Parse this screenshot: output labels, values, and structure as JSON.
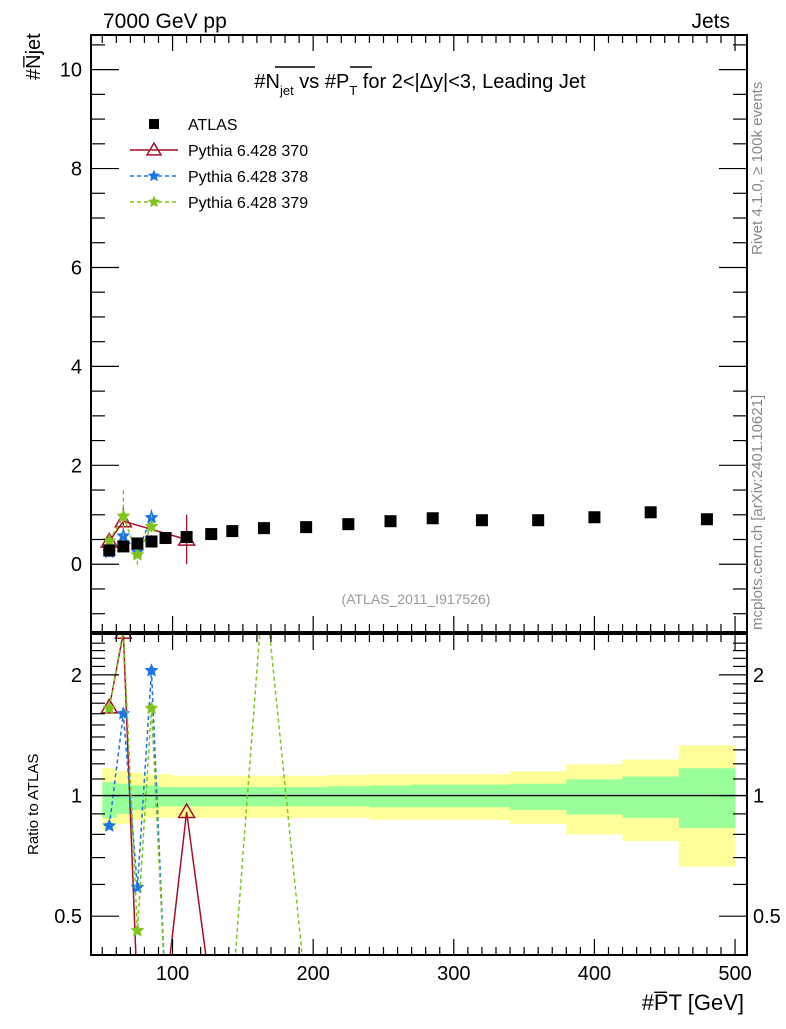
{
  "header": {
    "left": "7000 GeV pp",
    "right": "Jets"
  },
  "side_text": {
    "top": "Rivet 4.1.0, ≥ 100k events",
    "bottom": "mcplots.cern.ch [arXiv:2401.10621]"
  },
  "chart_data": {
    "type": "scatter",
    "title": "#N̅jet vs #P̅T for 2<|Δy|<3, Leading Jet",
    "title_parts": {
      "n": "#N",
      "jet": "jet",
      "vs": " vs #P",
      "t": "T",
      "rest": " for 2<|Δy|<3, Leading Jet"
    },
    "analysis_label": "(ATLAS_2011_I917526)",
    "xlabel": "#P̅T [GeV]",
    "xlabel_parts": {
      "p": "#P",
      "t": "T",
      "unit": " [GeV]"
    },
    "ylabel": "#N̅jet",
    "ylabel_parts": {
      "n": "#N",
      "jet": "jet"
    },
    "ratio_ylabel": "Ratio to ATLAS",
    "xlim": [
      42,
      508.5
    ],
    "ylim": [
      -1.37,
      10.7
    ],
    "ratio_ylim": [
      0.4,
      2.53
    ],
    "ratio_scale": "log",
    "x_ticks": [
      100,
      200,
      300,
      400,
      500
    ],
    "y_ticks": [
      0,
      2,
      4,
      6,
      8,
      10
    ],
    "ratio_ticks": [
      0.5,
      1,
      2
    ],
    "legend_placement": "top-left",
    "bin_edges": [
      50,
      60,
      70,
      80,
      90,
      100,
      120,
      135,
      150,
      180,
      210,
      240,
      270,
      300,
      340,
      380,
      420,
      460,
      500
    ],
    "data": {
      "name": "ATLAS",
      "color": "#000000",
      "x": [
        55,
        65,
        75,
        85,
        95,
        110,
        127.5,
        142.5,
        165,
        195,
        225,
        255,
        285,
        320,
        360,
        400,
        440,
        480
      ],
      "y": [
        0.28,
        0.36,
        0.42,
        0.46,
        0.53,
        0.55,
        0.61,
        0.67,
        0.73,
        0.75,
        0.81,
        0.87,
        0.93,
        0.89,
        0.89,
        0.95,
        1.05,
        0.91
      ],
      "band_inner": [
        [
          0.88,
          1.08
        ],
        [
          0.9,
          1.07
        ],
        [
          0.92,
          1.06
        ],
        [
          0.93,
          1.06
        ],
        [
          0.94,
          1.05
        ],
        [
          0.94,
          1.05
        ],
        [
          0.94,
          1.05
        ],
        [
          0.94,
          1.05
        ],
        [
          0.94,
          1.05
        ],
        [
          0.94,
          1.05
        ],
        [
          0.94,
          1.055
        ],
        [
          0.935,
          1.06
        ],
        [
          0.935,
          1.065
        ],
        [
          0.935,
          1.065
        ],
        [
          0.92,
          1.07
        ],
        [
          0.896,
          1.097
        ],
        [
          0.88,
          1.116
        ],
        [
          0.83,
          1.17
        ]
      ],
      "band_outer": [
        [
          0.82,
          1.17
        ],
        [
          0.85,
          1.15
        ],
        [
          0.87,
          1.14
        ],
        [
          0.88,
          1.13
        ],
        [
          0.88,
          1.13
        ],
        [
          0.88,
          1.12
        ],
        [
          0.88,
          1.12
        ],
        [
          0.88,
          1.12
        ],
        [
          0.88,
          1.12
        ],
        [
          0.88,
          1.12
        ],
        [
          0.88,
          1.125
        ],
        [
          0.87,
          1.13
        ],
        [
          0.87,
          1.13
        ],
        [
          0.87,
          1.13
        ],
        [
          0.85,
          1.15
        ],
        [
          0.8,
          1.196
        ],
        [
          0.77,
          1.23
        ],
        [
          0.665,
          1.335
        ]
      ]
    },
    "series": [
      {
        "name": "Pythia 6.428 370",
        "color": "#a50f2a",
        "dash": "",
        "marker": "triangle",
        "x": [
          55,
          65,
          110
        ],
        "y": [
          0.46,
          0.87,
          0.5
        ],
        "yerr": [
          0.15,
          0.3,
          0.5
        ],
        "ratio_x": [
          55,
          65,
          75,
          85,
          95,
          110,
          127.5
        ],
        "ratio": [
          1.66,
          2.55,
          0,
          0,
          0,
          0.91,
          0
        ]
      },
      {
        "name": "Pythia 6.428 378",
        "color": "#1a75e8",
        "dash": "4,3",
        "marker": "star",
        "x": [
          55,
          65,
          75,
          85
        ],
        "y": [
          0.24,
          0.57,
          0.25,
          0.94
        ],
        "yerr": [
          0.1,
          0.15,
          0.1,
          0.2
        ],
        "ratio_x": [
          55,
          65,
          75,
          85,
          95
        ],
        "ratio": [
          0.84,
          1.6,
          0.59,
          2.05,
          0
        ]
      },
      {
        "name": "Pythia 6.428 379",
        "color": "#7fc41c",
        "dash": "4,3",
        "marker": "star",
        "x": [
          55,
          65,
          75,
          85
        ],
        "y": [
          0.47,
          0.97,
          0.19,
          0.76
        ],
        "yerr": [
          0.15,
          0.55,
          0.2,
          0.25
        ],
        "ratio_x": [
          55,
          65,
          75,
          85,
          95,
          142.5,
          165,
          195
        ],
        "ratio": [
          1.65,
          2.6,
          0.46,
          1.65,
          0,
          0,
          3.5,
          0
        ]
      }
    ]
  }
}
